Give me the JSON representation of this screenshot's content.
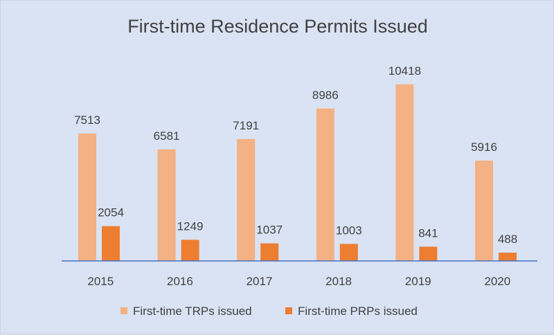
{
  "chart_data": {
    "type": "bar",
    "title": "First-time Residence Permits Issued",
    "categories": [
      "2015",
      "2016",
      "2017",
      "2018",
      "2019",
      "2020"
    ],
    "series": [
      {
        "name": "First-time TRPs issued",
        "values": [
          7513,
          6581,
          7191,
          8986,
          10418,
          5916
        ],
        "color": "#f4b183"
      },
      {
        "name": "First-time PRPs issued",
        "values": [
          2054,
          1249,
          1037,
          1003,
          841,
          488
        ],
        "color": "#ed7d31"
      }
    ],
    "ylim": [
      0,
      11000
    ],
    "grid": false,
    "legend_position": "bottom",
    "axis_color": "#4472c4"
  }
}
